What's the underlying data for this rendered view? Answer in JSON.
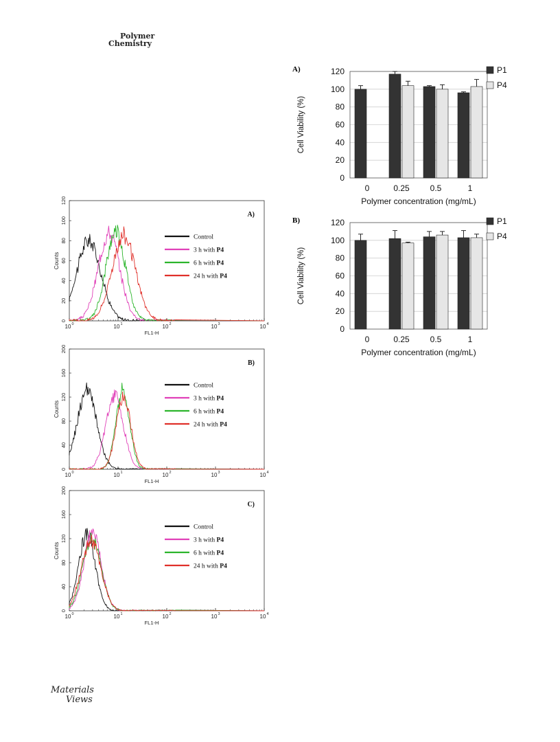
{
  "header": {
    "journal_line1": "Polymer",
    "journal_line2": "Chemistry"
  },
  "footer": {
    "brand_line1": "Materials",
    "brand_line2": "Views"
  },
  "colors": {
    "control": "#111111",
    "h3": "#e040b8",
    "h6": "#2bb52b",
    "h24": "#e0302a",
    "bar_p1": "#333333",
    "bar_p4": "#e6e6e6"
  },
  "chart_data": [
    {
      "type": "bar",
      "panel_label": "A)",
      "categories": [
        "0",
        "0.25",
        "0.5",
        "1"
      ],
      "series": [
        {
          "name": "P1",
          "values": [
            100,
            117,
            103,
            96
          ],
          "errors": [
            4,
            3,
            1,
            1
          ]
        },
        {
          "name": "P4",
          "values": [
            null,
            104,
            100,
            103
          ],
          "errors": [
            null,
            5,
            5,
            8
          ]
        }
      ],
      "xlabel": "Polymer concentration (mg/mL)",
      "ylabel": "Cell Viability (%)",
      "ylim": [
        0,
        120
      ],
      "yticks": [
        "0",
        "20",
        "40",
        "60",
        "80",
        "100",
        "120"
      ],
      "legend": "right"
    },
    {
      "type": "bar",
      "panel_label": "B)",
      "categories": [
        "0",
        "0.25",
        "0.5",
        "1"
      ],
      "series": [
        {
          "name": "P1",
          "values": [
            100,
            102,
            104,
            103
          ],
          "errors": [
            7,
            9,
            6,
            8
          ]
        },
        {
          "name": "P4",
          "values": [
            null,
            97,
            106,
            103
          ],
          "errors": [
            null,
            1,
            4,
            4
          ]
        }
      ],
      "xlabel": "Polymer concentration (mg/mL)",
      "ylabel": "Cell Viability (%)",
      "ylim": [
        0,
        120
      ],
      "yticks": [
        "0",
        "20",
        "40",
        "60",
        "80",
        "100",
        "120"
      ],
      "legend": "right"
    },
    {
      "type": "line",
      "panel_label": "A)",
      "xscale": "log",
      "xlim": [
        1,
        10000
      ],
      "xticks": [
        "10",
        "10",
        "10",
        "10",
        "10"
      ],
      "xtick_exps": [
        "0",
        "1",
        "2",
        "3",
        "4"
      ],
      "xlabel": "FL1-H",
      "ylabel": "Counts",
      "ylim": [
        0,
        120
      ],
      "yticks": [
        "0",
        "20",
        "40",
        "60",
        "80",
        "100",
        "120"
      ],
      "legend": "right",
      "series": [
        {
          "name": "Control",
          "suffix": "",
          "peak_x": 2.5,
          "peak_y": 80,
          "spread": 0.25
        },
        {
          "name": "3 h with ",
          "suffix": "P4",
          "peak_x": 6.5,
          "peak_y": 88,
          "spread": 0.22
        },
        {
          "name": "6 h with ",
          "suffix": "P4",
          "peak_x": 9.0,
          "peak_y": 90,
          "spread": 0.2
        },
        {
          "name": "24 h with ",
          "suffix": "P4",
          "peak_x": 13.0,
          "peak_y": 85,
          "spread": 0.24
        }
      ]
    },
    {
      "type": "line",
      "panel_label": "B)",
      "xscale": "log",
      "xlim": [
        1,
        10000
      ],
      "xticks": [
        "10",
        "10",
        "10",
        "10",
        "10"
      ],
      "xtick_exps": [
        "0",
        "1",
        "2",
        "3",
        "4"
      ],
      "xlabel": "FL1-H",
      "ylabel": "Counts",
      "ylim": [
        0,
        200
      ],
      "yticks": [
        "0",
        "40",
        "80",
        "120",
        "160",
        "200"
      ],
      "legend": "right",
      "series": [
        {
          "name": "Control",
          "suffix": "",
          "peak_x": 2.3,
          "peak_y": 130,
          "spread": 0.2
        },
        {
          "name": "3 h with ",
          "suffix": "P4",
          "peak_x": 8.5,
          "peak_y": 122,
          "spread": 0.18
        },
        {
          "name": "6 h with ",
          "suffix": "P4",
          "peak_x": 12.5,
          "peak_y": 132,
          "spread": 0.14
        },
        {
          "name": "24 h with ",
          "suffix": "P4",
          "peak_x": 13.0,
          "peak_y": 120,
          "spread": 0.15
        }
      ]
    },
    {
      "type": "line",
      "panel_label": "C)",
      "xscale": "log",
      "xlim": [
        1,
        10000
      ],
      "xticks": [
        "10",
        "10",
        "10",
        "10",
        "10"
      ],
      "xtick_exps": [
        "0",
        "1",
        "2",
        "3",
        "4"
      ],
      "xlabel": "FL1-H",
      "ylabel": "Counts",
      "ylim": [
        0,
        200
      ],
      "yticks": [
        "0",
        "40",
        "80",
        "120",
        "160",
        "200"
      ],
      "legend": "right",
      "series": [
        {
          "name": "Control",
          "suffix": "",
          "peak_x": 2.3,
          "peak_y": 128,
          "spread": 0.17
        },
        {
          "name": "3 h with ",
          "suffix": "P4",
          "peak_x": 3.0,
          "peak_y": 130,
          "spread": 0.18
        },
        {
          "name": "6 h with ",
          "suffix": "P4",
          "peak_x": 2.9,
          "peak_y": 120,
          "spread": 0.19
        },
        {
          "name": "24 h with ",
          "suffix": "P4",
          "peak_x": 2.8,
          "peak_y": 118,
          "spread": 0.2
        }
      ]
    }
  ]
}
